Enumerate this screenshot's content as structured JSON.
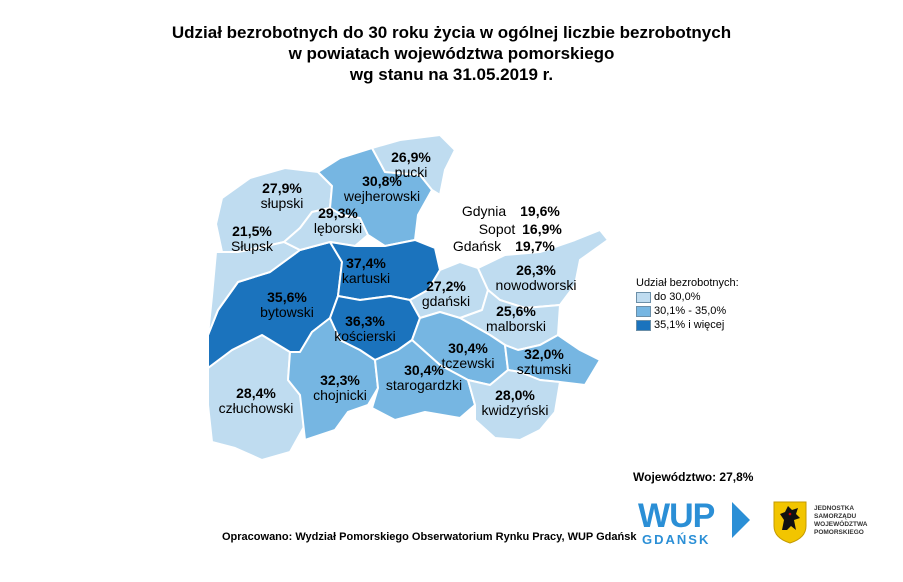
{
  "title": {
    "line1": "Udział bezrobotnych do 30 roku życia w ogólnej liczbie bezrobotnych",
    "line2": "w powiatach województwa pomorskiego",
    "line3": "wg stanu na 31.05.2019 r."
  },
  "colors": {
    "light": "#bfdcf0",
    "medium": "#76b6e2",
    "dark": "#1b73bd",
    "border": "#ffffff",
    "logo": "#2b8fd6"
  },
  "districts": [
    {
      "id": "pucki",
      "name": "pucki",
      "value": "26,9%",
      "class": "light"
    },
    {
      "id": "wejherowski",
      "name": "wejherowski",
      "value": "30,8%",
      "class": "medium"
    },
    {
      "id": "slupski",
      "name": "słupski",
      "value": "27,9%",
      "class": "light"
    },
    {
      "id": "leborski",
      "name": "lęborski",
      "value": "29,3%",
      "class": "light"
    },
    {
      "id": "slupsk",
      "name": "Słupsk",
      "value": "21,5%",
      "class": "light"
    },
    {
      "id": "kartuski",
      "name": "kartuski",
      "value": "37,4%",
      "class": "dark"
    },
    {
      "id": "bytowski",
      "name": "bytowski",
      "value": "35,6%",
      "class": "dark"
    },
    {
      "id": "koscierski",
      "name": "kościerski",
      "value": "36,3%",
      "class": "dark"
    },
    {
      "id": "gdanski",
      "name": "gdański",
      "value": "27,2%",
      "class": "light"
    },
    {
      "id": "nowodworski",
      "name": "nowodworski",
      "value": "26,3%",
      "class": "light"
    },
    {
      "id": "malborski",
      "name": "malborski",
      "value": "25,6%",
      "class": "light"
    },
    {
      "id": "tczewski",
      "name": "tczewski",
      "value": "30,4%",
      "class": "medium"
    },
    {
      "id": "sztumski",
      "name": "sztumski",
      "value": "32,0%",
      "class": "medium"
    },
    {
      "id": "czluchowski",
      "name": "człuchowski",
      "value": "28,4%",
      "class": "light"
    },
    {
      "id": "chojnicki",
      "name": "chojnicki",
      "value": "32,3%",
      "class": "medium"
    },
    {
      "id": "starogardzki",
      "name": "starogardzki",
      "value": "30,4%",
      "class": "medium"
    },
    {
      "id": "kwidzynski",
      "name": "kwidzyński",
      "value": "28,0%",
      "class": "light"
    }
  ],
  "cities": [
    {
      "name": "Gdynia",
      "value": "19,6%"
    },
    {
      "name": "Sopot",
      "value": "16,9%"
    },
    {
      "name": "Gdańsk",
      "value": "19,7%"
    }
  ],
  "legend": {
    "title": "Udział bezrobotnych:",
    "items": [
      {
        "label": "do 30,0%",
        "color": "#bfdcf0"
      },
      {
        "label": "30,1% - 35,0%",
        "color": "#76b6e2"
      },
      {
        "label": "35,1% i więcej",
        "color": "#1b73bd"
      }
    ]
  },
  "voivodeship": "Województwo: 27,8%",
  "source": "Opracowano: Wydział Pomorskiego Obserwatorium Rynku Pracy, WUP Gdańsk",
  "logo": {
    "wup": "WUP",
    "wup_city": "GDAŃSK",
    "crest_icon": "griffin-crest-icon",
    "jst_lines": [
      "JEDNOSTKA",
      "SAMORZĄDU",
      "WOJEWÓDZTWA",
      "POMORSKIEGO"
    ]
  }
}
